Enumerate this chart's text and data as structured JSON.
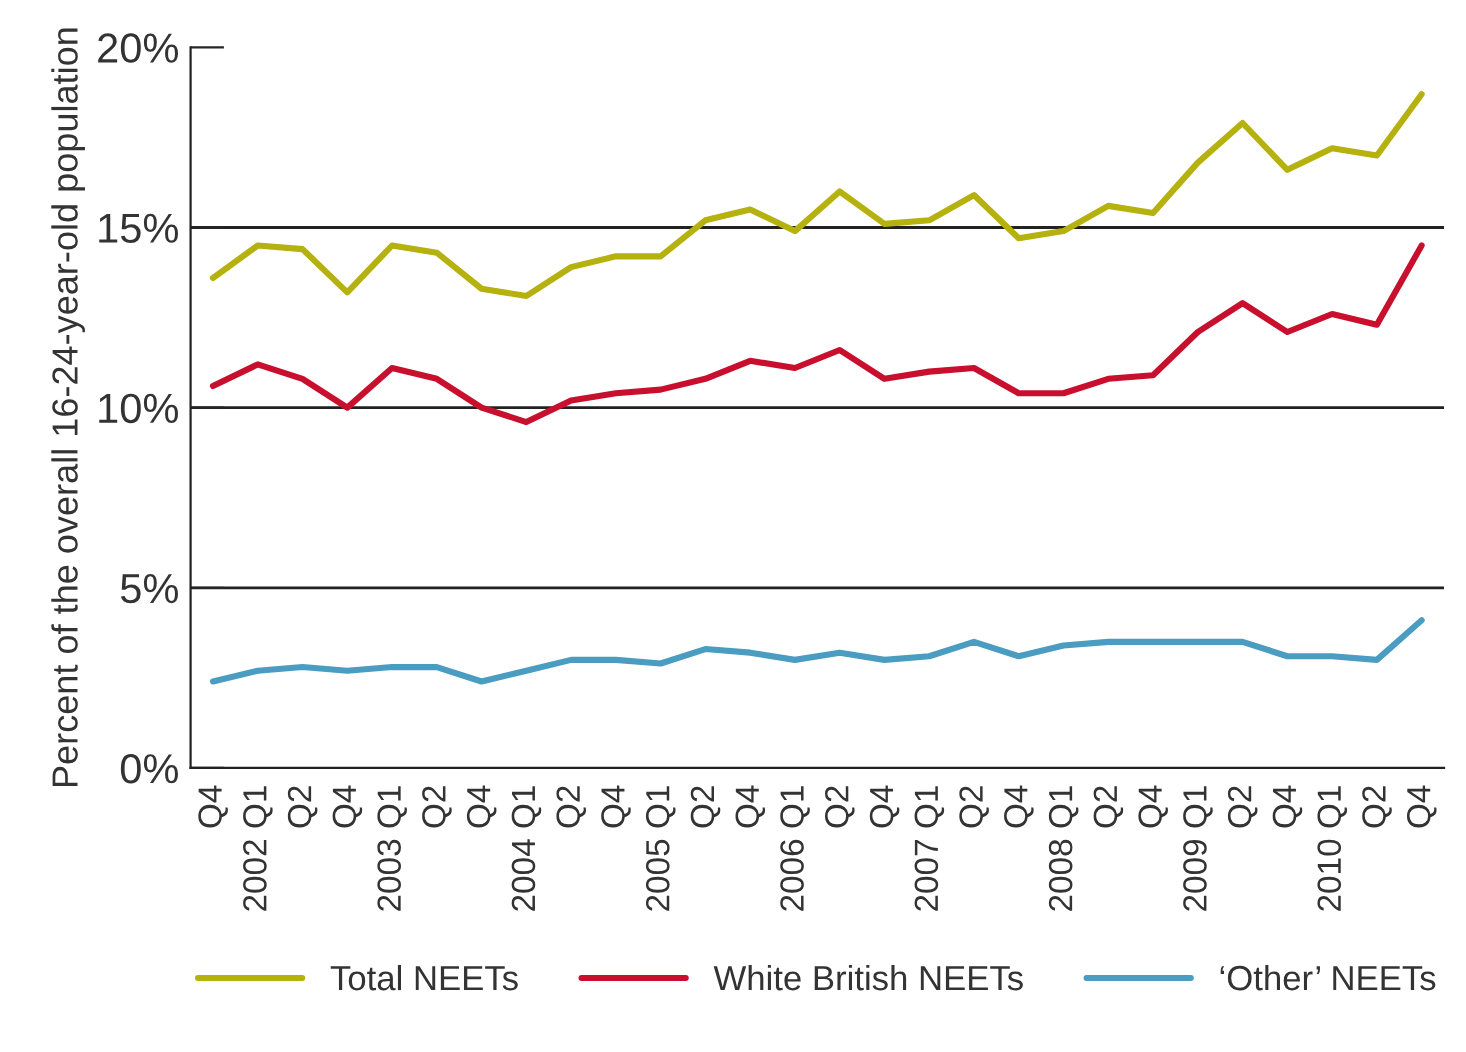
{
  "chart_data": {
    "type": "line",
    "ylabel": "Percent of the overall 16-24-year-old population",
    "categories": [
      "Q4",
      "2002 Q1",
      "Q2",
      "Q4",
      "2003 Q1",
      "Q2",
      "Q4",
      "2004 Q1",
      "Q2",
      "Q4",
      "2005 Q1",
      "Q2",
      "Q4",
      "2006 Q1",
      "Q2",
      "Q4",
      "2007 Q1",
      "Q2",
      "Q4",
      "2008 Q1",
      "Q2",
      "Q4",
      "2009 Q1",
      "Q2",
      "Q4",
      "2010 Q1",
      "Q2",
      "Q4"
    ],
    "series": [
      {
        "name": "Total NEETs",
        "color": "#b5b10f",
        "values": [
          13.6,
          14.5,
          14.4,
          13.2,
          14.5,
          14.3,
          13.3,
          13.1,
          13.9,
          14.2,
          14.2,
          15.2,
          15.5,
          14.9,
          16.0,
          15.1,
          15.2,
          15.9,
          14.7,
          14.9,
          15.6,
          15.4,
          16.8,
          17.9,
          16.6,
          17.2,
          17.0,
          18.7
        ]
      },
      {
        "name": "White British NEETs",
        "color": "#c8102e",
        "values": [
          10.6,
          11.2,
          10.8,
          10.0,
          11.1,
          10.8,
          10.0,
          9.6,
          10.2,
          10.4,
          10.5,
          10.8,
          11.3,
          11.1,
          11.6,
          10.8,
          11.0,
          11.1,
          10.4,
          10.4,
          10.8,
          10.9,
          12.1,
          12.9,
          12.1,
          12.6,
          12.3,
          14.5
        ]
      },
      {
        "name": "‘Other’ NEETs",
        "color": "#4a9cc1",
        "values": [
          2.4,
          2.7,
          2.8,
          2.7,
          2.8,
          2.8,
          2.4,
          2.7,
          3.0,
          3.0,
          2.9,
          3.3,
          3.2,
          3.0,
          3.2,
          3.0,
          3.1,
          3.5,
          3.1,
          3.4,
          3.5,
          3.5,
          3.5,
          3.5,
          3.1,
          3.1,
          3.0,
          4.1
        ]
      }
    ],
    "ylim": [
      0,
      20
    ],
    "yticks": [
      {
        "value": 0,
        "label": "0%"
      },
      {
        "value": 5,
        "label": "5%"
      },
      {
        "value": 10,
        "label": "10%"
      },
      {
        "value": 15,
        "label": "15%"
      },
      {
        "value": 20,
        "label": "20%"
      }
    ],
    "grid": "y",
    "legend": "bottom",
    "marker": "none",
    "line_style": "solid"
  }
}
